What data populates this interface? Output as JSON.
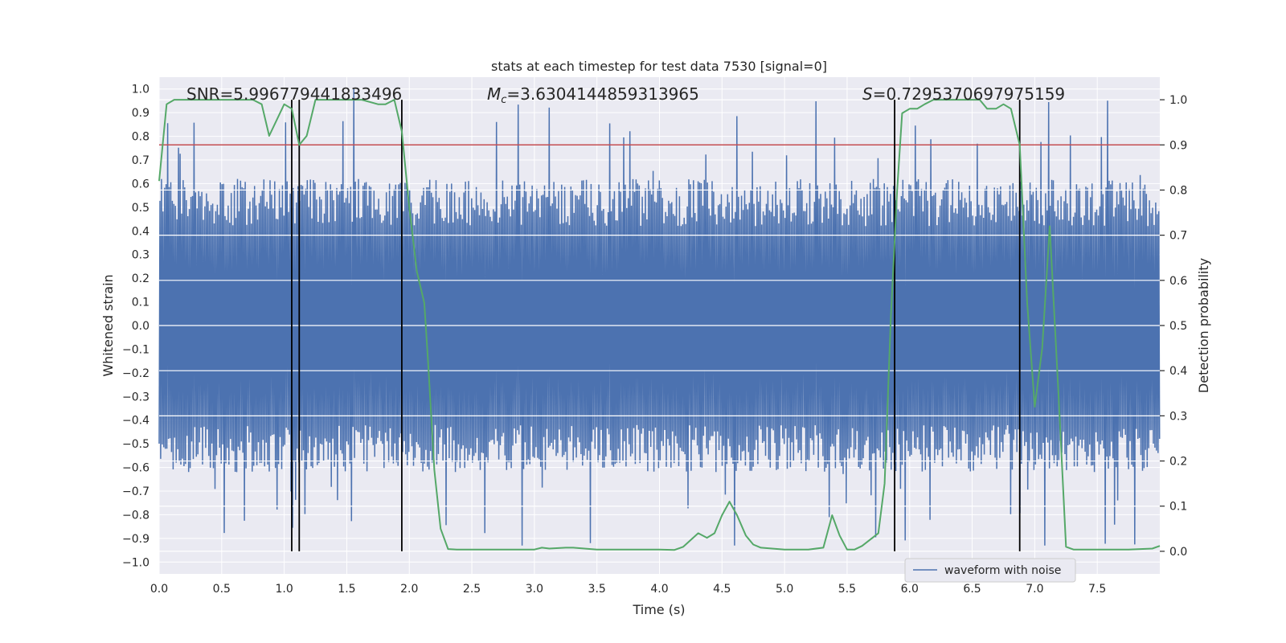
{
  "chart_data": {
    "type": "line",
    "title": "stats at each timestep for test data 7530 [signal=0]",
    "xlabel": "Time (s)",
    "ylabel": "Whitened strain",
    "ylabel_right": "Detection probability",
    "xlim": [
      0,
      8
    ],
    "ylim": [
      -1.05,
      1.05
    ],
    "ylim_right": [
      -0.05,
      1.05
    ],
    "x_ticks": [
      "0.0",
      "0.5",
      "1.0",
      "1.5",
      "2.0",
      "2.5",
      "3.0",
      "3.5",
      "4.0",
      "4.5",
      "5.0",
      "5.5",
      "6.0",
      "6.5",
      "7.0",
      "7.5"
    ],
    "y_ticks": [
      "1.0",
      "0.9",
      "0.8",
      "0.7",
      "0.6",
      "0.5",
      "0.4",
      "0.3",
      "0.2",
      "0.1",
      "0.0",
      "−0.1",
      "−0.2",
      "−0.3",
      "−0.4",
      "−0.5",
      "−0.6",
      "−0.7",
      "−0.8",
      "−0.9",
      "−1.0"
    ],
    "y_ticks_right": [
      "1.0",
      "0.9",
      "0.8",
      "0.7",
      "0.6",
      "0.5",
      "0.4",
      "0.3",
      "0.2",
      "0.1",
      "0.0"
    ],
    "grid": true,
    "annotations": {
      "snr": "SNR=5.996779441833496",
      "mc_symbol": "M",
      "mc_sub": "c",
      "mc_value": "=3.6304144859313965",
      "s_symbol": "S",
      "s_value": "=0.7295370697975159"
    },
    "threshold": {
      "value": 0.9,
      "axis": "right",
      "color": "#c44e52"
    },
    "vertical_markers": [
      1.06,
      1.12,
      1.94,
      5.88,
      6.88
    ],
    "legend": {
      "label": "waveform with noise",
      "position": "lower-right"
    },
    "series": [
      {
        "name": "waveform with noise",
        "axis": "left",
        "color": "#4c72b0",
        "envelope_core": 0.42,
        "peak_density": "dense noise, sampled every 0.01 s",
        "max": 1.0,
        "min": -0.93
      },
      {
        "name": "detection probability",
        "axis": "right",
        "color": "#55a868",
        "x": [
          0.0,
          0.06,
          0.12,
          0.25,
          0.5,
          0.75,
          0.82,
          0.88,
          1.0,
          1.06,
          1.12,
          1.18,
          1.25,
          1.31,
          1.5,
          1.62,
          1.75,
          1.81,
          1.88,
          1.94,
          2.0,
          2.06,
          2.12,
          2.15,
          2.2,
          2.25,
          2.31,
          2.38,
          2.5,
          2.75,
          3.0,
          3.06,
          3.12,
          3.25,
          3.31,
          3.5,
          3.75,
          4.0,
          4.12,
          4.19,
          4.31,
          4.38,
          4.44,
          4.5,
          4.56,
          4.62,
          4.69,
          4.75,
          4.81,
          5.0,
          5.19,
          5.31,
          5.38,
          5.44,
          5.5,
          5.56,
          5.62,
          5.75,
          5.8,
          5.85,
          5.9,
          5.94,
          6.0,
          6.06,
          6.12,
          6.19,
          6.25,
          6.31,
          6.38,
          6.44,
          6.5,
          6.56,
          6.62,
          6.69,
          6.75,
          6.81,
          6.88,
          6.94,
          7.0,
          7.06,
          7.12,
          7.19,
          7.25,
          7.31,
          7.38,
          7.5,
          7.75,
          7.94,
          8.0
        ],
        "values": [
          0.82,
          0.99,
          1.0,
          1.0,
          1.0,
          1.0,
          0.99,
          0.92,
          0.99,
          0.98,
          0.9,
          0.92,
          1.0,
          1.0,
          1.0,
          1.0,
          0.99,
          0.99,
          1.0,
          0.93,
          0.76,
          0.62,
          0.55,
          0.42,
          0.18,
          0.05,
          0.005,
          0.004,
          0.004,
          0.004,
          0.004,
          0.008,
          0.006,
          0.008,
          0.008,
          0.004,
          0.004,
          0.004,
          0.003,
          0.01,
          0.04,
          0.03,
          0.04,
          0.08,
          0.11,
          0.08,
          0.035,
          0.015,
          0.008,
          0.004,
          0.004,
          0.008,
          0.08,
          0.035,
          0.004,
          0.004,
          0.012,
          0.04,
          0.15,
          0.52,
          0.8,
          0.97,
          0.98,
          0.98,
          0.99,
          1.0,
          1.0,
          1.0,
          1.0,
          1.0,
          1.0,
          1.0,
          0.98,
          0.98,
          0.99,
          0.98,
          0.9,
          0.55,
          0.32,
          0.45,
          0.72,
          0.35,
          0.01,
          0.004,
          0.004,
          0.004,
          0.004,
          0.006,
          0.012
        ]
      }
    ]
  }
}
